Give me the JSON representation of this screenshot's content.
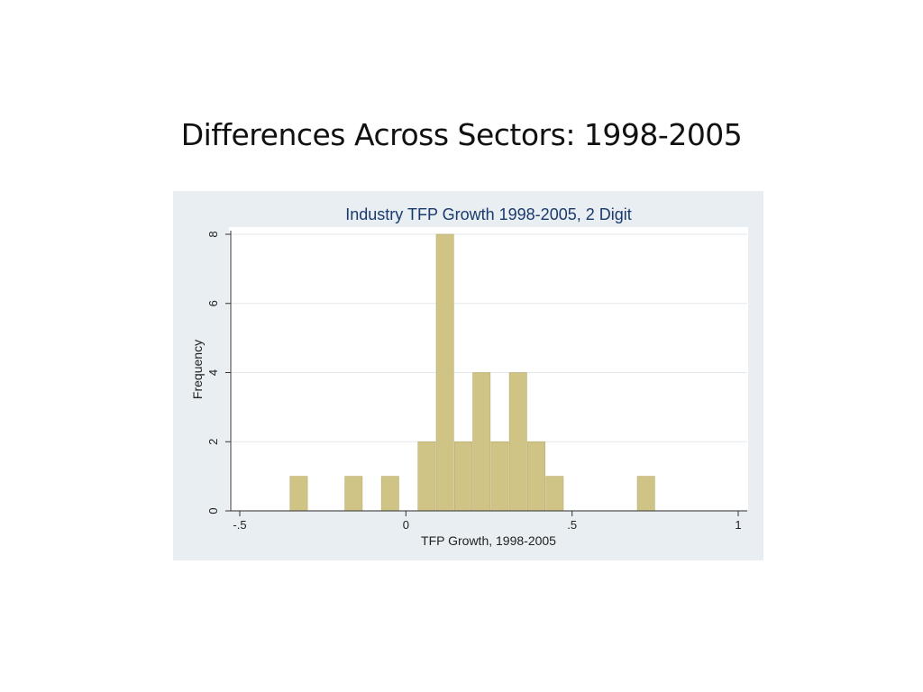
{
  "slide": {
    "title": "Differences Across Sectors: 1998-2005"
  },
  "colors": {
    "bar": "#cfc486",
    "bar_edge": "#b9ad6a",
    "panel": "#e8eef2",
    "title": "#1a3a6e"
  },
  "chart_data": {
    "type": "bar",
    "title": "Industry TFP Growth 1998-2005, 2 Digit",
    "xlabel": "TFP Growth, 1998-2005",
    "ylabel": "Frequency",
    "xlim": [
      -0.5,
      1.0
    ],
    "ylim": [
      0,
      8
    ],
    "xticks": [
      {
        "value": -0.5,
        "label": "-.5"
      },
      {
        "value": 0,
        "label": "0"
      },
      {
        "value": 0.5,
        "label": ".5"
      },
      {
        "value": 1,
        "label": "1"
      }
    ],
    "yticks": [
      {
        "value": 0,
        "label": "0"
      },
      {
        "value": 2,
        "label": "2"
      },
      {
        "value": 4,
        "label": "4"
      },
      {
        "value": 6,
        "label": "6"
      },
      {
        "value": 8,
        "label": "8"
      }
    ],
    "grid": true,
    "bins": [
      {
        "x0": -0.35,
        "x1": -0.295,
        "count": 1
      },
      {
        "x0": -0.185,
        "x1": -0.13,
        "count": 1
      },
      {
        "x0": -0.075,
        "x1": -0.02,
        "count": 1
      },
      {
        "x0": 0.035,
        "x1": 0.09,
        "count": 2
      },
      {
        "x0": 0.09,
        "x1": 0.145,
        "count": 8
      },
      {
        "x0": 0.145,
        "x1": 0.2,
        "count": 2
      },
      {
        "x0": 0.2,
        "x1": 0.255,
        "count": 4
      },
      {
        "x0": 0.255,
        "x1": 0.31,
        "count": 2
      },
      {
        "x0": 0.31,
        "x1": 0.365,
        "count": 4
      },
      {
        "x0": 0.365,
        "x1": 0.42,
        "count": 2
      },
      {
        "x0": 0.42,
        "x1": 0.475,
        "count": 1
      },
      {
        "x0": 0.695,
        "x1": 0.75,
        "count": 1
      }
    ]
  }
}
